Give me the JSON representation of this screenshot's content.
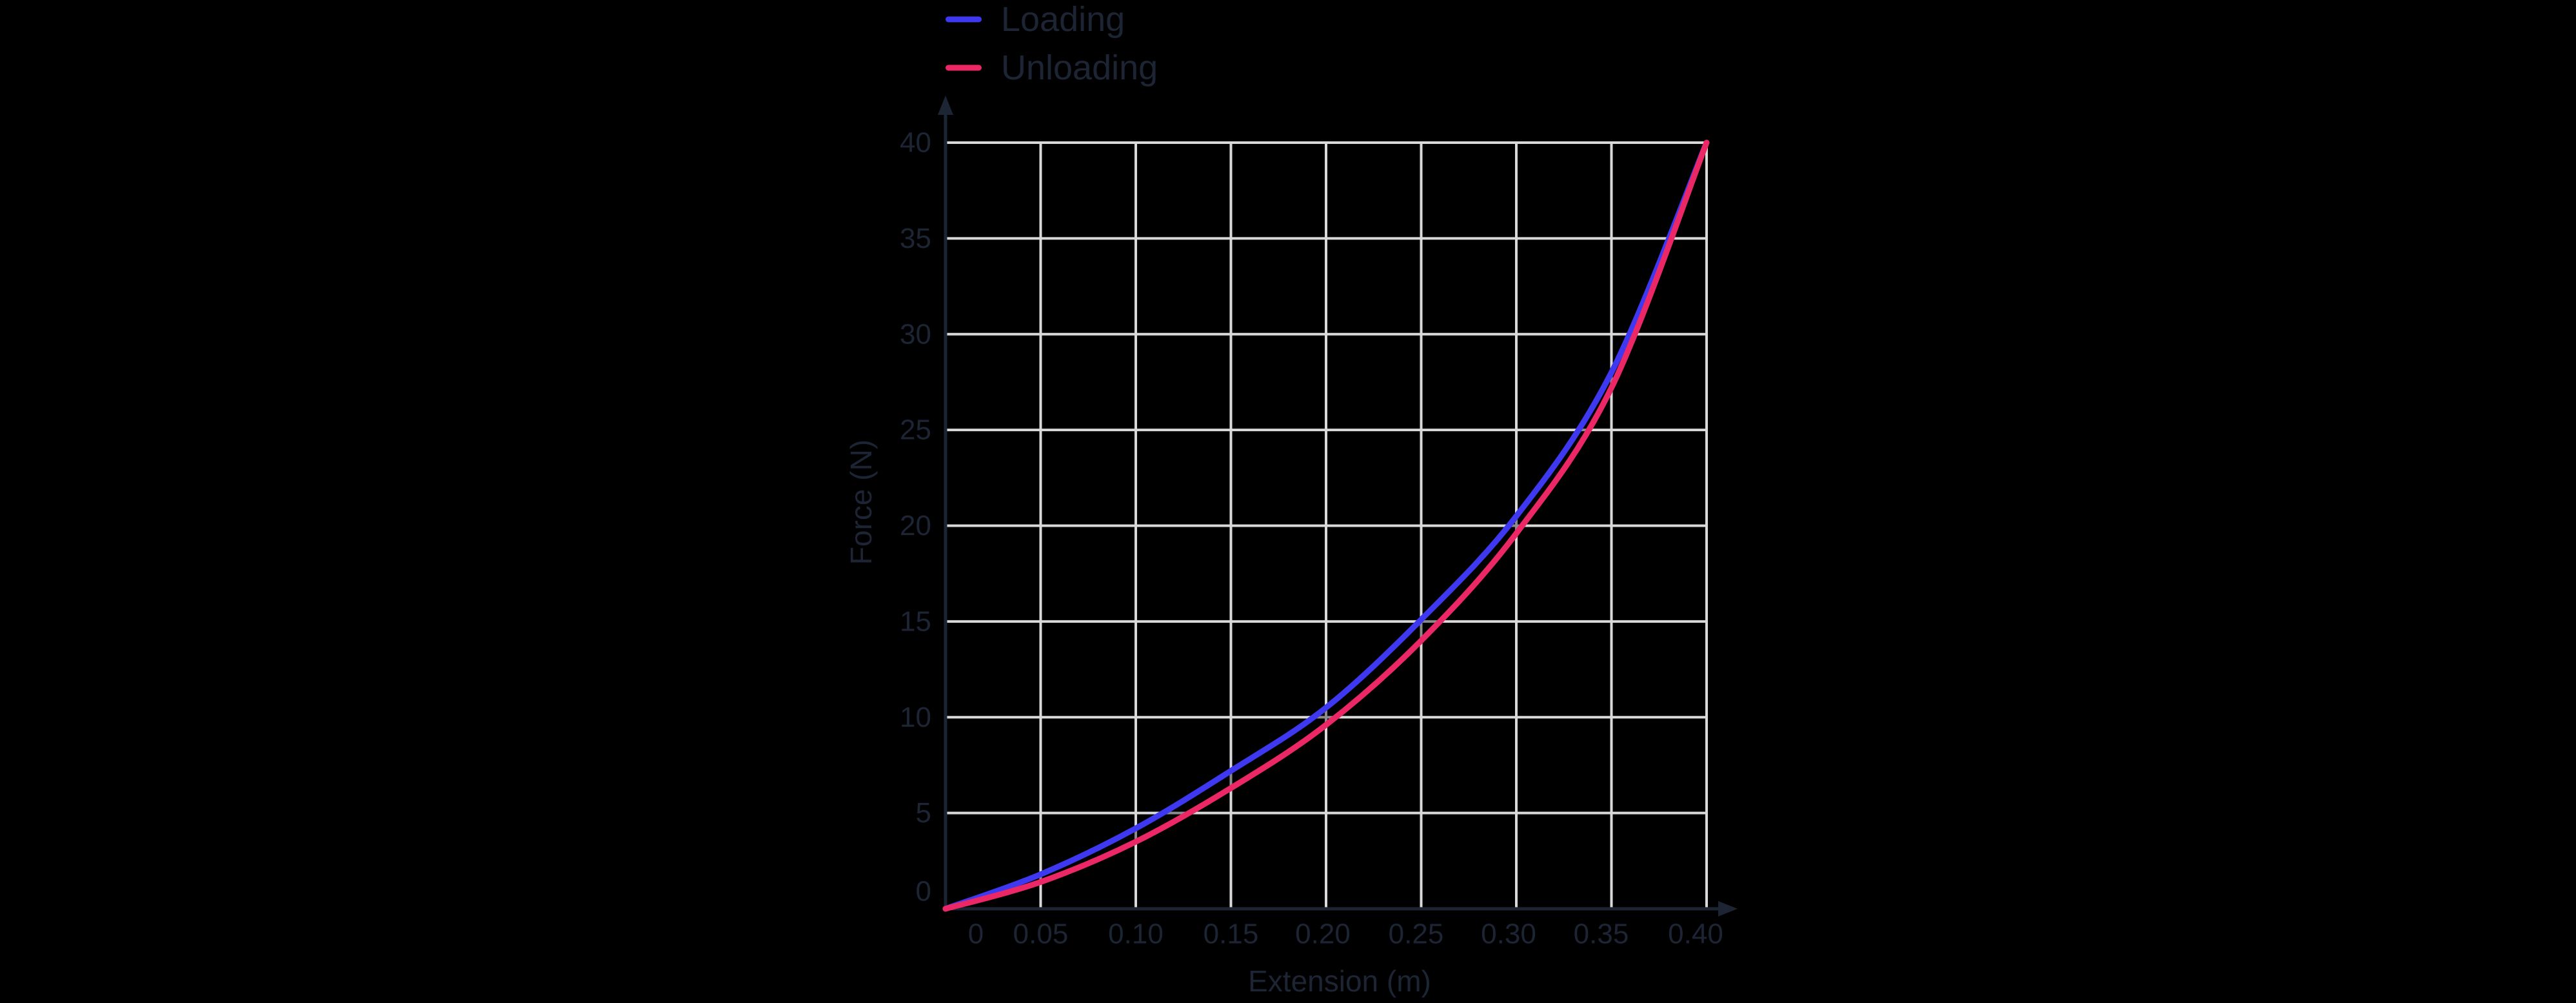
{
  "page": {
    "background": "#000000"
  },
  "legend": {
    "items": [
      {
        "label": "Loading",
        "color": "#3e38f1"
      },
      {
        "label": "Unloading",
        "color": "#ec2766"
      }
    ]
  },
  "chart_data": {
    "type": "line",
    "title": "",
    "xlabel": "Extension (m)",
    "ylabel": "Force (N)",
    "x": [
      0,
      0.05,
      0.1,
      0.15,
      0.2,
      0.25,
      0.3,
      0.35,
      0.4
    ],
    "series": [
      {
        "name": "Loading",
        "color": "#3e38f1",
        "values": [
          0,
          1.8,
          4.2,
          7.2,
          10.5,
          15.1,
          20.5,
          28.0,
          40
        ]
      },
      {
        "name": "Unloading",
        "color": "#ec2766",
        "values": [
          0,
          1.4,
          3.5,
          6.3,
          9.6,
          14.0,
          19.6,
          27.2,
          40
        ]
      }
    ],
    "x_ticks": [
      "0",
      "0.05",
      "0.10",
      "0.15",
      "0.20",
      "0.25",
      "0.30",
      "0.35",
      "0.40"
    ],
    "y_ticks": [
      "0",
      "5",
      "10",
      "15",
      "20",
      "25",
      "30",
      "35",
      "40"
    ],
    "xlim": [
      0,
      0.4
    ],
    "ylim": [
      0,
      40
    ],
    "grid": true,
    "grid_color": "#d9d9d9",
    "axis_color": "#1d2433",
    "text_color": "#1d2433",
    "hysteresis_fill": "rgba(0,0,0,0.36)",
    "legend_position": "top-left"
  }
}
